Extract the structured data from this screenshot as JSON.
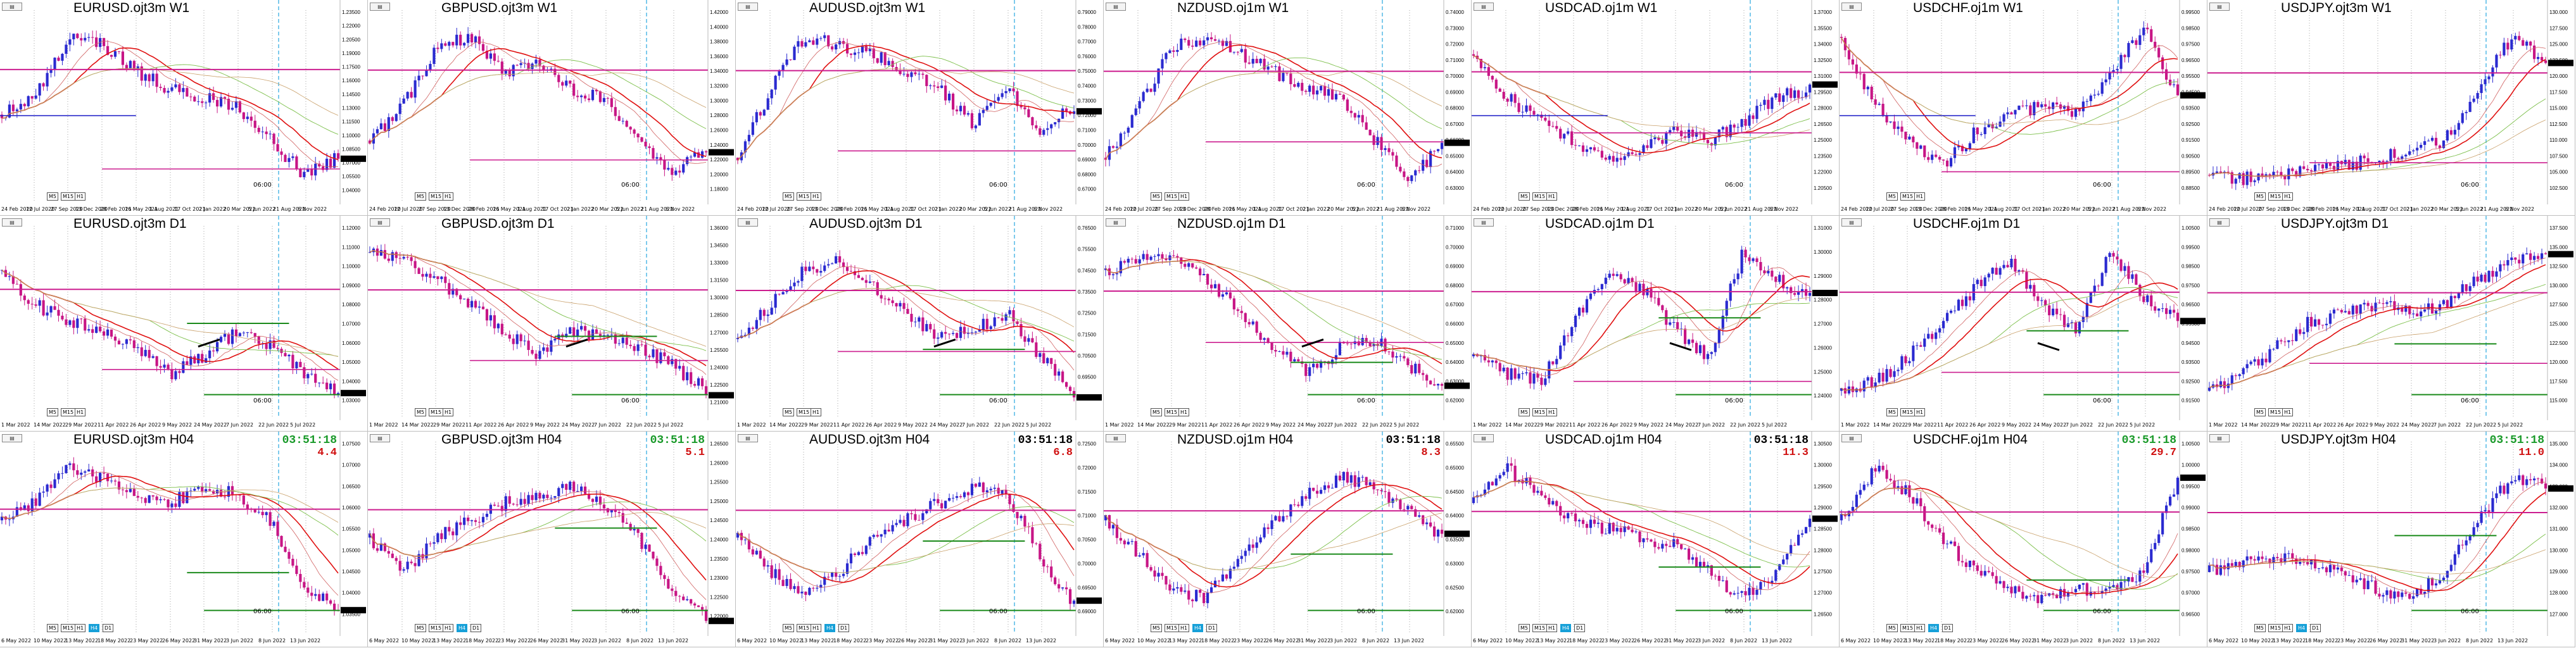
{
  "colors": {
    "bull": "#2a2ad0",
    "bear": "#c71585",
    "ma_fast": "#e01010",
    "ma_mid": "#d06060",
    "ma_slow": "#7cbf4a",
    "ma_slow2": "#c9a06a",
    "level": "#cc1d8f",
    "support": "#1a8a1a",
    "blue_level": "#2525c8",
    "session_line": "#27a7e0",
    "grid": "#666666",
    "timer_green": "#1a9a2a",
    "timer_red": "#d01010",
    "timer_black": "#000000"
  },
  "clock_label": "06:00",
  "charts": [
    {
      "title": "EURUSD.ojt3m W1",
      "mini": "EURUSD,Weekly",
      "timer": "",
      "spread": "",
      "tfs": [
        "M5",
        "M15",
        "H1"
      ],
      "active_tf": "",
      "dates": [
        "24 Feb 2020",
        "12 Jul 2020",
        "27 Sep 2020",
        "13 Dec 2020",
        "28 Feb 2021",
        "16 May 2021",
        "1 Aug 2021",
        "17 Oct 2021",
        "2 Jan 2022",
        "20 Mar 2022",
        "5 Jun 2022",
        "21 Aug 2022",
        "6 Nov 2022"
      ],
      "prices": [
        "1.23500",
        "1.22000",
        "1.20500",
        "1.19000",
        "1.17500",
        "1.16000",
        "1.14500",
        "1.13000",
        "1.11500",
        "1.10000",
        "1.08500",
        "1.07000",
        "1.05500",
        "1.04000"
      ]
    },
    {
      "title": "GBPUSD.ojt3m W1",
      "mini": "GBPUSD,Weekly",
      "timer": "",
      "spread": "",
      "tfs": [
        "M5",
        "M15",
        "H1"
      ],
      "active_tf": "",
      "dates": [
        "24 Feb 2020",
        "12 Jul 2020",
        "27 Sep 2020",
        "13 Dec 2020",
        "28 Feb 2021",
        "16 May 2021",
        "1 Aug 2021",
        "17 Oct 2021",
        "2 Jan 2022",
        "20 Mar 2022",
        "5 Jun 2022",
        "21 Aug 2022",
        "6 Nov 2022"
      ],
      "prices": [
        "1.42000",
        "1.40000",
        "1.38000",
        "1.36000",
        "1.34000",
        "1.32000",
        "1.30000",
        "1.28000",
        "1.26000",
        "1.24000",
        "1.22000",
        "1.20000",
        "1.18000"
      ]
    },
    {
      "title": "AUDUSD.ojt3m W1",
      "mini": "AUDUSD,Weekly",
      "timer": "",
      "spread": "",
      "tfs": [
        "M5",
        "M15",
        "H1"
      ],
      "active_tf": "",
      "dates": [
        "24 Feb 2020",
        "12 Jul 2020",
        "27 Sep 2020",
        "13 Dec 2020",
        "28 Feb 2021",
        "16 May 2021",
        "1 Aug 2021",
        "17 Oct 2021",
        "2 Jan 2022",
        "20 Mar 2022",
        "5 Jun 2022",
        "21 Aug 2022",
        "6 Nov 2022"
      ],
      "prices": [
        "0.79000",
        "0.78000",
        "0.77000",
        "0.76000",
        "0.75000",
        "0.74000",
        "0.73000",
        "0.72000",
        "0.71000",
        "0.70000",
        "0.69000",
        "0.68000",
        "0.67000"
      ]
    },
    {
      "title": "NZDUSD.oj1m W1",
      "mini": "NZDUSD,Weekly",
      "timer": "",
      "spread": "",
      "tfs": [
        "M5",
        "M15",
        "H1"
      ],
      "active_tf": "",
      "dates": [
        "24 Feb 2020",
        "12 Jul 2020",
        "27 Sep 2020",
        "13 Dec 2020",
        "28 Feb 2021",
        "16 May 2021",
        "1 Aug 2021",
        "17 Oct 2021",
        "2 Jan 2022",
        "20 Mar 2022",
        "5 Jun 2022",
        "21 Aug 2022",
        "6 Nov 2022"
      ],
      "prices": [
        "0.74000",
        "0.73000",
        "0.72000",
        "0.71000",
        "0.70000",
        "0.69000",
        "0.68000",
        "0.67000",
        "0.66000",
        "0.65000",
        "0.64000",
        "0.63000"
      ]
    },
    {
      "title": "USDCAD.oj1m W1",
      "mini": "USDCAD,Weekly",
      "timer": "",
      "spread": "",
      "tfs": [
        "M5",
        "M15",
        "H1"
      ],
      "active_tf": "",
      "dates": [
        "24 Feb 2020",
        "12 Jul 2020",
        "27 Sep 2020",
        "13 Dec 2020",
        "28 Feb 2021",
        "16 May 2021",
        "1 Aug 2021",
        "17 Oct 2021",
        "2 Jan 2022",
        "20 Mar 2022",
        "5 Jun 2022",
        "21 Aug 2022",
        "6 Nov 2022"
      ],
      "prices": [
        "1.37000",
        "1.35500",
        "1.34000",
        "1.32500",
        "1.31000",
        "1.29500",
        "1.28000",
        "1.26500",
        "1.25000",
        "1.23500",
        "1.22000",
        "1.20500"
      ]
    },
    {
      "title": "USDCHF.oj1m W1",
      "mini": "USDCHF,Weekly",
      "timer": "",
      "spread": "",
      "tfs": [
        "M5",
        "M15",
        "H1"
      ],
      "active_tf": "",
      "dates": [
        "24 Feb 2020",
        "12 Jul 2020",
        "27 Sep 2020",
        "13 Dec 2020",
        "28 Feb 2021",
        "16 May 2021",
        "1 Aug 2021",
        "17 Oct 2021",
        "2 Jan 2022",
        "20 Mar 2022",
        "5 Jun 2022",
        "21 Aug 2022",
        "6 Nov 2022"
      ],
      "prices": [
        "0.99500",
        "0.98500",
        "0.97500",
        "0.96500",
        "0.95500",
        "0.94500",
        "0.93500",
        "0.92500",
        "0.91500",
        "0.90500",
        "0.89500",
        "0.88500"
      ]
    },
    {
      "title": "USDJPY.ojt3m W1",
      "mini": "USDJPY,Weekly",
      "timer": "",
      "spread": "",
      "tfs": [
        "M5",
        "M15",
        "H1"
      ],
      "active_tf": "",
      "dates": [
        "24 Feb 2020",
        "12 Jul 2020",
        "27 Sep 2020",
        "13 Dec 2020",
        "28 Feb 2021",
        "16 May 2021",
        "1 Aug 2021",
        "17 Oct 2021",
        "2 Jan 2022",
        "20 Mar 2022",
        "5 Jun 2022",
        "21 Aug 2022",
        "6 Nov 2022"
      ],
      "prices": [
        "130.000",
        "127.500",
        "125.000",
        "122.500",
        "120.000",
        "117.500",
        "115.000",
        "112.500",
        "110.000",
        "107.500",
        "105.000",
        "102.500"
      ]
    },
    {
      "title": "EURUSD.ojt3m D1",
      "mini": "EURUSD,Daily",
      "timer": "",
      "spread": "",
      "tfs": [
        "M5",
        "M15",
        "H1"
      ],
      "active_tf": "",
      "dates": [
        "1 Mar 2022",
        "14 Mar 2022",
        "29 Mar 2022",
        "11 Apr 2022",
        "26 Apr 2022",
        "9 May 2022",
        "24 May 2022",
        "7 Jun 2022",
        "22 Jun 2022",
        "5 Jul 2022"
      ],
      "prices": [
        "1.12000",
        "1.11000",
        "1.10000",
        "1.09000",
        "1.08000",
        "1.07000",
        "1.06000",
        "1.05000",
        "1.04000",
        "1.03000"
      ]
    },
    {
      "title": "GBPUSD.ojt3m D1",
      "mini": "GBPUSD,Daily",
      "timer": "",
      "spread": "",
      "tfs": [
        "M5",
        "M15",
        "H1"
      ],
      "active_tf": "",
      "dates": [
        "1 Mar 2022",
        "14 Mar 2022",
        "29 Mar 2022",
        "11 Apr 2022",
        "26 Apr 2022",
        "9 May 2022",
        "24 May 2022",
        "7 Jun 2022",
        "22 Jun 2022",
        "5 Jul 2022"
      ],
      "prices": [
        "1.36000",
        "1.34500",
        "1.33000",
        "1.31500",
        "1.30000",
        "1.28500",
        "1.27000",
        "1.25500",
        "1.24000",
        "1.22500",
        "1.21000"
      ]
    },
    {
      "title": "AUDUSD.ojt3m D1",
      "mini": "AUDUSD,Daily",
      "timer": "",
      "spread": "",
      "tfs": [
        "M5",
        "M15",
        "H1"
      ],
      "active_tf": "",
      "dates": [
        "1 Mar 2022",
        "14 Mar 2022",
        "29 Mar 2022",
        "11 Apr 2022",
        "26 Apr 2022",
        "9 May 2022",
        "24 May 2022",
        "7 Jun 2022",
        "22 Jun 2022",
        "5 Jul 2022"
      ],
      "prices": [
        "0.76500",
        "0.75500",
        "0.74500",
        "0.73500",
        "0.72500",
        "0.71500",
        "0.70500",
        "0.69500",
        "0.68500"
      ]
    },
    {
      "title": "NZDUSD.oj1m D1",
      "mini": "NZDUSD,Daily",
      "timer": "",
      "spread": "",
      "tfs": [
        "M5",
        "M15",
        "H1"
      ],
      "active_tf": "",
      "dates": [
        "1 Mar 2022",
        "14 Mar 2022",
        "29 Mar 2022",
        "11 Apr 2022",
        "26 Apr 2022",
        "9 May 2022",
        "24 May 2022",
        "7 Jun 2022",
        "22 Jun 2022",
        "5 Jul 2022"
      ],
      "prices": [
        "0.71000",
        "0.70000",
        "0.69000",
        "0.68000",
        "0.67000",
        "0.66000",
        "0.65000",
        "0.64000",
        "0.63000",
        "0.62000"
      ]
    },
    {
      "title": "USDCAD.oj1m D1",
      "mini": "USDCAD,Daily",
      "timer": "",
      "spread": "",
      "tfs": [
        "M5",
        "M15",
        "H1"
      ],
      "active_tf": "",
      "dates": [
        "1 Mar 2022",
        "14 Mar 2022",
        "29 Mar 2022",
        "11 Apr 2022",
        "26 Apr 2022",
        "9 May 2022",
        "24 May 2022",
        "7 Jun 2022",
        "22 Jun 2022",
        "5 Jul 2022"
      ],
      "prices": [
        "1.31000",
        "1.30000",
        "1.29000",
        "1.28000",
        "1.27000",
        "1.26000",
        "1.25000",
        "1.24000"
      ]
    },
    {
      "title": "USDCHF.oj1m D1",
      "mini": "USDCHF,Daily",
      "timer": "",
      "spread": "",
      "tfs": [
        "M5",
        "M15",
        "H1"
      ],
      "active_tf": "",
      "dates": [
        "1 Mar 2022",
        "14 Mar 2022",
        "29 Mar 2022",
        "11 Apr 2022",
        "26 Apr 2022",
        "9 May 2022",
        "24 May 2022",
        "7 Jun 2022",
        "22 Jun 2022",
        "5 Jul 2022"
      ],
      "prices": [
        "1.00500",
        "0.99500",
        "0.98500",
        "0.97500",
        "0.96500",
        "0.95500",
        "0.94500",
        "0.93500",
        "0.92500",
        "0.91500"
      ]
    },
    {
      "title": "USDJPY.ojt3m D1",
      "mini": "USDJPY,Daily",
      "timer": "",
      "spread": "",
      "tfs": [
        "M5",
        "M15",
        "H1"
      ],
      "active_tf": "",
      "dates": [
        "1 Mar 2022",
        "14 Mar 2022",
        "29 Mar 2022",
        "11 Apr 2022",
        "26 Apr 2022",
        "9 May 2022",
        "24 May 2022",
        "7 Jun 2022",
        "22 Jun 2022",
        "5 Jul 2022"
      ],
      "prices": [
        "137.500",
        "135.000",
        "132.500",
        "130.000",
        "127.500",
        "125.000",
        "122.500",
        "120.000",
        "117.500",
        "115.000"
      ]
    },
    {
      "title": "EURUSD.ojt3m H04",
      "mini": "EURUSD,H4",
      "timer": "03:51:18",
      "timer_color": "#1a9a2a",
      "spread": "4.4",
      "spread_color": "#d01010",
      "tfs": [
        "M5",
        "M15",
        "H1",
        "H4",
        "D1"
      ],
      "active_tf": "H4",
      "dates": [
        "6 May 2022",
        "10 May 2022",
        "13 May 2022",
        "18 May 2022",
        "23 May 2022",
        "26 May 2022",
        "31 May 2022",
        "3 Jun 2022",
        "8 Jun 2022",
        "13 Jun 2022"
      ],
      "prices": [
        "1.07500",
        "1.07000",
        "1.06500",
        "1.06000",
        "1.05500",
        "1.05000",
        "1.04500",
        "1.04000",
        "1.03500"
      ]
    },
    {
      "title": "GBPUSD.ojt3m H04",
      "mini": "GBPUSD,H4",
      "timer": "03:51:18",
      "timer_color": "#1a9a2a",
      "spread": "5.1",
      "spread_color": "#d01010",
      "tfs": [
        "M5",
        "M15",
        "H1",
        "H4",
        "D1"
      ],
      "active_tf": "H4",
      "dates": [
        "6 May 2022",
        "10 May 2022",
        "13 May 2022",
        "18 May 2022",
        "23 May 2022",
        "26 May 2022",
        "31 May 2022",
        "3 Jun 2022",
        "8 Jun 2022",
        "13 Jun 2022"
      ],
      "prices": [
        "1.26500",
        "1.26000",
        "1.25500",
        "1.25000",
        "1.24500",
        "1.24000",
        "1.23500",
        "1.23000",
        "1.22500",
        "1.22000"
      ]
    },
    {
      "title": "AUDUSD.ojt3m H04",
      "mini": "AUDUSD,H4",
      "timer": "03:51:18",
      "timer_color": "#000000",
      "spread": "6.8",
      "spread_color": "#d01010",
      "tfs": [
        "M5",
        "M15",
        "H1",
        "H4",
        "D1"
      ],
      "active_tf": "H4",
      "dates": [
        "6 May 2022",
        "10 May 2022",
        "13 May 2022",
        "18 May 2022",
        "23 May 2022",
        "26 May 2022",
        "31 May 2022",
        "3 Jun 2022",
        "8 Jun 2022",
        "13 Jun 2022"
      ],
      "prices": [
        "0.72500",
        "0.72000",
        "0.71500",
        "0.71000",
        "0.70500",
        "0.70000",
        "0.69500",
        "0.69000"
      ]
    },
    {
      "title": "NZDUSD.oj1m H04",
      "mini": "NZDUSD,H4",
      "timer": "03:51:18",
      "timer_color": "#000000",
      "spread": "8.3",
      "spread_color": "#d01010",
      "tfs": [
        "M5",
        "M15",
        "H1",
        "H4",
        "D1"
      ],
      "active_tf": "H4",
      "dates": [
        "6 May 2022",
        "10 May 2022",
        "13 May 2022",
        "18 May 2022",
        "23 May 2022",
        "26 May 2022",
        "31 May 2022",
        "3 Jun 2022",
        "8 Jun 2022",
        "13 Jun 2022"
      ],
      "prices": [
        "0.65500",
        "0.65000",
        "0.64500",
        "0.64000",
        "0.63500",
        "0.63000",
        "0.62500",
        "0.62000"
      ]
    },
    {
      "title": "USDCAD.oj1m H04",
      "mini": "USDCAD,H4",
      "timer": "03:51:18",
      "timer_color": "#000000",
      "spread": "11.3",
      "spread_color": "#d01010",
      "tfs": [
        "M5",
        "M15",
        "H1",
        "H4",
        "D1"
      ],
      "active_tf": "H4",
      "dates": [
        "6 May 2022",
        "10 May 2022",
        "13 May 2022",
        "18 May 2022",
        "23 May 2022",
        "26 May 2022",
        "31 May 2022",
        "3 Jun 2022",
        "8 Jun 2022",
        "13 Jun 2022"
      ],
      "prices": [
        "1.30500",
        "1.30000",
        "1.29500",
        "1.29000",
        "1.28500",
        "1.28000",
        "1.27500",
        "1.27000",
        "1.26500"
      ]
    },
    {
      "title": "USDCHF.oj1m H04",
      "mini": "USDCHF,H4",
      "timer": "03:51:18",
      "timer_color": "#1a9a2a",
      "spread": "29.7",
      "spread_color": "#d01010",
      "tfs": [
        "M5",
        "M15",
        "H1",
        "H4",
        "D1"
      ],
      "active_tf": "H4",
      "dates": [
        "6 May 2022",
        "10 May 2022",
        "13 May 2022",
        "18 May 2022",
        "23 May 2022",
        "26 May 2022",
        "31 May 2022",
        "3 Jun 2022",
        "8 Jun 2022",
        "13 Jun 2022"
      ],
      "prices": [
        "1.00500",
        "1.00000",
        "0.99500",
        "0.99000",
        "0.98500",
        "0.98000",
        "0.97500",
        "0.97000",
        "0.96500"
      ]
    },
    {
      "title": "USDJPY.ojt3m H04",
      "mini": "USDJPY,H4",
      "timer": "03:51:18",
      "timer_color": "#1a9a2a",
      "spread": "11.0",
      "spread_color": "#d01010",
      "tfs": [
        "M5",
        "M15",
        "H1",
        "H4",
        "D1"
      ],
      "active_tf": "H4",
      "dates": [
        "6 May 2022",
        "10 May 2022",
        "13 May 2022",
        "18 May 2022",
        "23 May 2022",
        "26 May 2022",
        "31 May 2022",
        "3 Jun 2022",
        "8 Jun 2022",
        "13 Jun 2022"
      ],
      "prices": [
        "135.000",
        "134.000",
        "133.000",
        "132.000",
        "131.000",
        "130.000",
        "129.000",
        "128.000",
        "127.000"
      ]
    }
  ]
}
